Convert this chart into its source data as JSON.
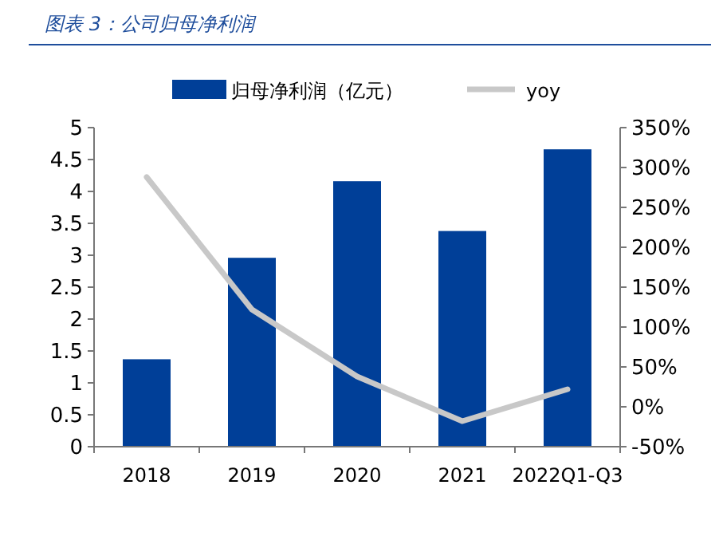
{
  "chart_data": {
    "type": "bar",
    "title": "图表 3：公司归母净利润",
    "categories": [
      "2018",
      "2019",
      "2020",
      "2021",
      "2022Q1-Q3"
    ],
    "series": [
      {
        "name": "归母净利润（亿元）",
        "color": "#003f98",
        "values": [
          1.37,
          2.96,
          4.16,
          3.38,
          4.66
        ]
      },
      {
        "name": "yoy",
        "type": "line",
        "axis": "y2",
        "color": "#c8c8c8",
        "values": [
          288,
          122,
          38,
          -18,
          22
        ]
      }
    ],
    "ylim": [
      0,
      5
    ],
    "yticks": [
      0,
      0.5,
      1,
      1.5,
      2,
      2.5,
      3,
      3.5,
      4,
      4.5,
      5
    ],
    "y2lim": [
      -50,
      350
    ],
    "y2ticks": [
      {
        "value": -50,
        "label": "-50%"
      },
      {
        "value": 0,
        "label": "0%"
      },
      {
        "value": 50,
        "label": "50%"
      },
      {
        "value": 100,
        "label": "100%"
      },
      {
        "value": 150,
        "label": "150%"
      },
      {
        "value": 200,
        "label": "200%"
      },
      {
        "value": 250,
        "label": "250%"
      },
      {
        "value": 300,
        "label": "300%"
      },
      {
        "value": 350,
        "label": "350%"
      }
    ],
    "legend": "top",
    "grid": false
  }
}
